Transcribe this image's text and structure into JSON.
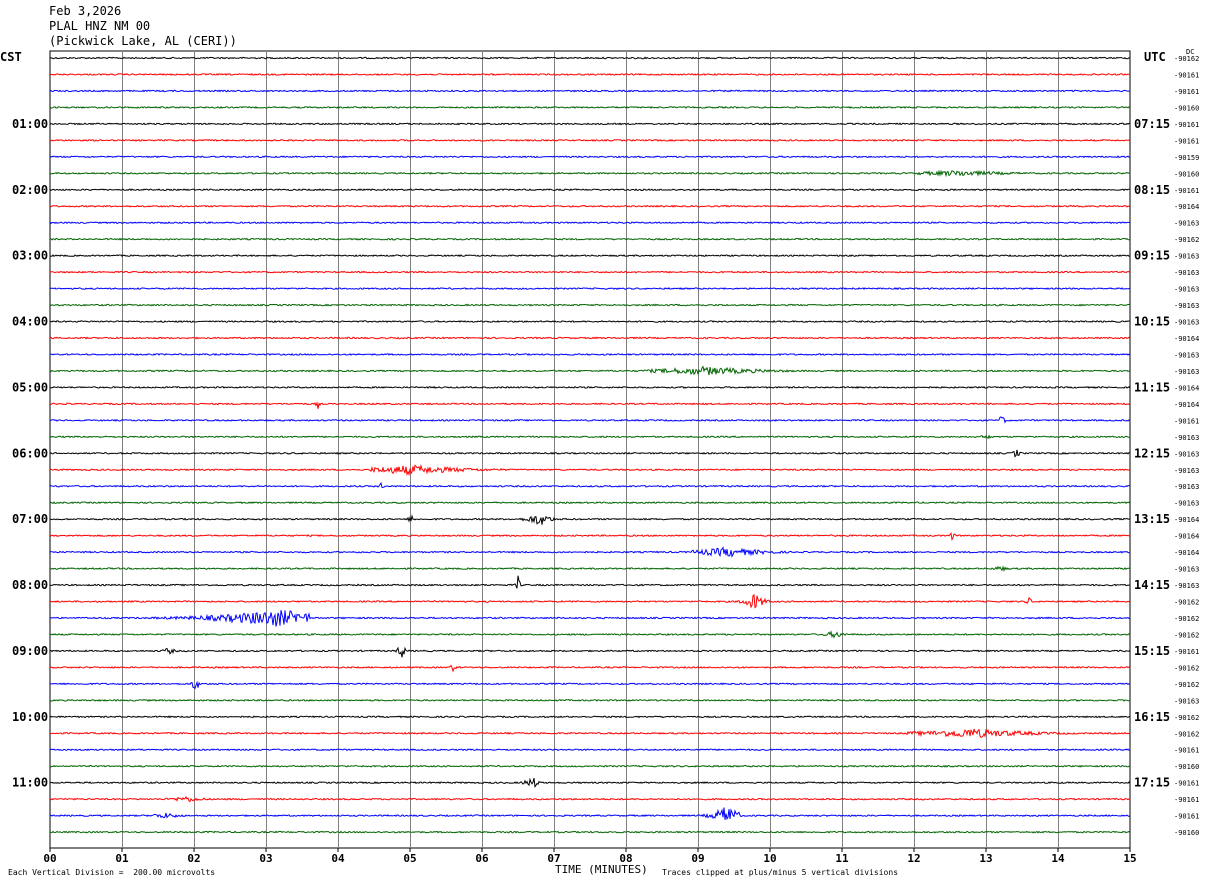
{
  "header": {
    "date": "Feb 3,2026",
    "station": "PLAL HNZ NM 00",
    "location": "(Pickwick Lake, AL (CERI))"
  },
  "left_zone": "CST",
  "right_zone": "UTC",
  "dc_label": "DC",
  "footer": {
    "scale_note": "Each Vertical Division =  200.00 microvolts",
    "clip_note": "Traces clipped at plus/minus 5 vertical divisions",
    "xlabel": "TIME (MINUTES)"
  },
  "colors": {
    "trace_cycle": [
      "#000000",
      "#ff0000",
      "#0000ff",
      "#006400"
    ],
    "grid": "#808080"
  },
  "chart_data": {
    "type": "line",
    "title": "PLAL HNZ NM 00",
    "xlabel": "TIME (MINUTES)",
    "xlim": [
      0,
      15
    ],
    "x_ticks": [
      "00",
      "01",
      "02",
      "03",
      "04",
      "05",
      "06",
      "07",
      "08",
      "09",
      "10",
      "11",
      "12",
      "13",
      "14",
      "15"
    ],
    "rows": 48,
    "left_hour_labels": [
      "01:00",
      "02:00",
      "03:00",
      "04:00",
      "05:00",
      "06:00",
      "07:00",
      "08:00",
      "09:00",
      "10:00",
      "11:00"
    ],
    "right_hour_labels": [
      "07:15",
      "08:15",
      "09:15",
      "10:15",
      "11:15",
      "12:15",
      "13:15",
      "14:15",
      "15:15",
      "16:15",
      "17:15"
    ],
    "hour_label_rows": [
      4,
      8,
      12,
      16,
      20,
      24,
      28,
      32,
      36,
      40,
      44
    ],
    "dc_offsets": [
      "-90162",
      "-90161",
      "-90161",
      "-90160",
      "-90161",
      "-90161",
      "-90159",
      "-90160",
      "-90161",
      "-90164",
      "-90163",
      "-90162",
      "-90163",
      "-90163",
      "-90163",
      "-90163",
      "-90163",
      "-90164",
      "-90163",
      "-90163",
      "-90164",
      "-90164",
      "-90161",
      "-90163",
      "-90163",
      "-90163",
      "-90163",
      "-90163",
      "-90164",
      "-90164",
      "-90164",
      "-90163",
      "-90163",
      "-90162",
      "-90162",
      "-90162",
      "-90161",
      "-90162",
      "-90162",
      "-90163",
      "-90162",
      "-90162",
      "-90161",
      "-90160",
      "-90161",
      "-90161",
      "-90161",
      "-90160"
    ],
    "events": [
      {
        "row": 7,
        "start": 12.05,
        "end": 15.0,
        "amp": 3.0,
        "peak": 12.6
      },
      {
        "row": 19,
        "start": 8.25,
        "end": 11.2,
        "amp": 4.5,
        "peak": 9.1
      },
      {
        "row": 21,
        "start": 3.68,
        "end": 3.76,
        "amp": 6.0,
        "peak": 3.72
      },
      {
        "row": 22,
        "start": 13.15,
        "end": 13.3,
        "amp": 7.0,
        "peak": 13.22
      },
      {
        "row": 23,
        "start": 12.9,
        "end": 13.1,
        "amp": 4.0,
        "peak": 13.0
      },
      {
        "row": 25,
        "start": 4.45,
        "end": 7.4,
        "amp": 5.0,
        "peak": 5.0
      },
      {
        "row": 24,
        "start": 13.35,
        "end": 13.5,
        "amp": 6.0,
        "peak": 13.42
      },
      {
        "row": 26,
        "start": 4.55,
        "end": 4.65,
        "amp": 5.0,
        "peak": 4.6
      },
      {
        "row": 28,
        "start": 6.4,
        "end": 7.0,
        "amp": 7.0,
        "peak": 6.8
      },
      {
        "row": 28,
        "start": 4.95,
        "end": 5.1,
        "amp": 5.0,
        "peak": 5.02
      },
      {
        "row": 29,
        "start": 12.45,
        "end": 12.6,
        "amp": 5.0,
        "peak": 12.52
      },
      {
        "row": 30,
        "start": 8.9,
        "end": 10.9,
        "amp": 5.0,
        "peak": 9.4
      },
      {
        "row": 31,
        "start": 13.0,
        "end": 13.4,
        "amp": 3.0,
        "peak": 13.2
      },
      {
        "row": 32,
        "start": 6.45,
        "end": 6.55,
        "amp": 10.0,
        "peak": 6.5
      },
      {
        "row": 33,
        "start": 9.5,
        "end": 10.0,
        "amp": 9.0,
        "peak": 9.78
      },
      {
        "row": 33,
        "start": 13.5,
        "end": 13.65,
        "amp": 5.0,
        "peak": 13.6
      },
      {
        "row": 34,
        "start": 0.6,
        "end": 3.6,
        "amp": 9.0,
        "peak": 3.15
      },
      {
        "row": 35,
        "start": 10.7,
        "end": 11.2,
        "amp": 4.0,
        "peak": 10.9
      },
      {
        "row": 36,
        "start": 4.8,
        "end": 4.95,
        "amp": 11.0,
        "peak": 4.88
      },
      {
        "row": 36,
        "start": 1.5,
        "end": 1.8,
        "amp": 4.0,
        "peak": 1.65
      },
      {
        "row": 37,
        "start": 5.5,
        "end": 5.7,
        "amp": 4.0,
        "peak": 5.6
      },
      {
        "row": 38,
        "start": 1.95,
        "end": 2.1,
        "amp": 10.0,
        "peak": 2.02
      },
      {
        "row": 41,
        "start": 11.9,
        "end": 15.0,
        "amp": 5.0,
        "peak": 12.8
      },
      {
        "row": 44,
        "start": 6.4,
        "end": 6.8,
        "amp": 6.0,
        "peak": 6.7
      },
      {
        "row": 45,
        "start": 1.4,
        "end": 2.4,
        "amp": 3.0,
        "peak": 1.9
      },
      {
        "row": 46,
        "start": 9.0,
        "end": 9.6,
        "amp": 11.0,
        "peak": 9.4
      },
      {
        "row": 46,
        "start": 1.4,
        "end": 2.3,
        "amp": 3.0,
        "peak": 1.6
      }
    ]
  }
}
